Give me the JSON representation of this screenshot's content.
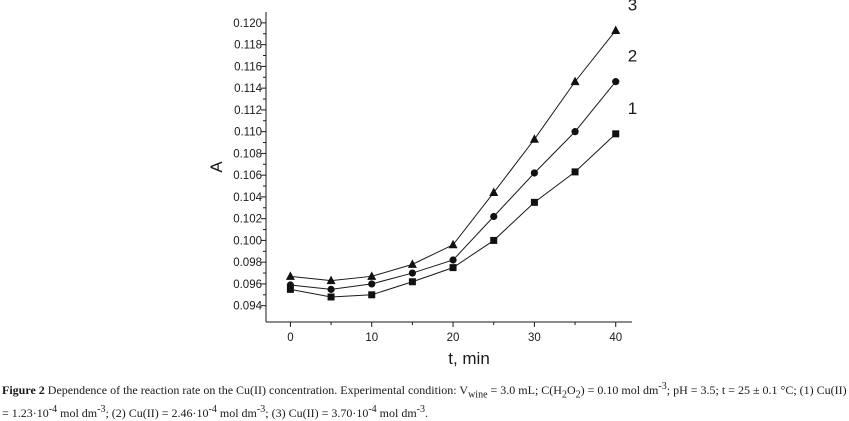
{
  "chart_data": {
    "type": "line",
    "title": "",
    "xlabel": "t, min",
    "ylabel": "A",
    "xlim": [
      -3,
      42
    ],
    "ylim": [
      0.0925,
      0.121
    ],
    "x_ticks": [
      0,
      10,
      20,
      30,
      40
    ],
    "y_ticks": [
      0.094,
      0.096,
      0.098,
      0.1,
      0.102,
      0.104,
      0.106,
      0.108,
      0.11,
      0.112,
      0.114,
      0.116,
      0.118,
      0.12
    ],
    "y_tick_labels": [
      "0.094",
      "0.096",
      "0.098",
      "0.100",
      "0.102",
      "0.104",
      "0.106",
      "0.108",
      "0.110",
      "0.112",
      "0.114",
      "0.116",
      "0.118",
      "0.120"
    ],
    "x_tick_labels": [
      "0",
      "10",
      "20",
      "30",
      "40"
    ],
    "x": [
      0,
      5,
      10,
      15,
      20,
      25,
      30,
      35,
      40
    ],
    "series": [
      {
        "name": "1",
        "marker": "square",
        "values": [
          0.0955,
          0.0948,
          0.095,
          0.0962,
          0.0975,
          0.1,
          0.1035,
          0.1063,
          0.1098
        ]
      },
      {
        "name": "2",
        "marker": "circle",
        "values": [
          0.0959,
          0.0955,
          0.096,
          0.097,
          0.0982,
          0.1022,
          0.1062,
          0.11,
          0.1146
        ]
      },
      {
        "name": "3",
        "marker": "triangle",
        "values": [
          0.0967,
          0.0963,
          0.0967,
          0.0978,
          0.0996,
          0.1044,
          0.1093,
          0.1146,
          0.1193
        ]
      }
    ],
    "grid": false,
    "legend": "labels at line ends, top-right"
  },
  "caption": {
    "label": "Figure 2",
    "text": " Dependence of the reaction rate on the Cu(II) concentration. Experimental condition: V",
    "sub_wine": "wine",
    "text2": " = 3.0 mL; C(H",
    "sub_2a": "2",
    "text3": "O",
    "sub_2b": "2",
    "text4": ") = 0.10 mol dm",
    "sup_a": "-3",
    "text5": "; pH = 3.5; t = 25 ± 0.1 °C; (1) Cu(II) = 1.23·10",
    "sup_b": "-4",
    "text6": " mol dm",
    "sup_c": "-3",
    "text7": "; (2) Cu(II) = 2.46·10",
    "sup_d": "-4",
    "text8": " mol dm",
    "sup_e": "-3",
    "text9": "; (3) Cu(II) = 3.70·10",
    "sup_f": "-4",
    "text10": " mol dm",
    "sup_g": "-3",
    "text11": "."
  }
}
